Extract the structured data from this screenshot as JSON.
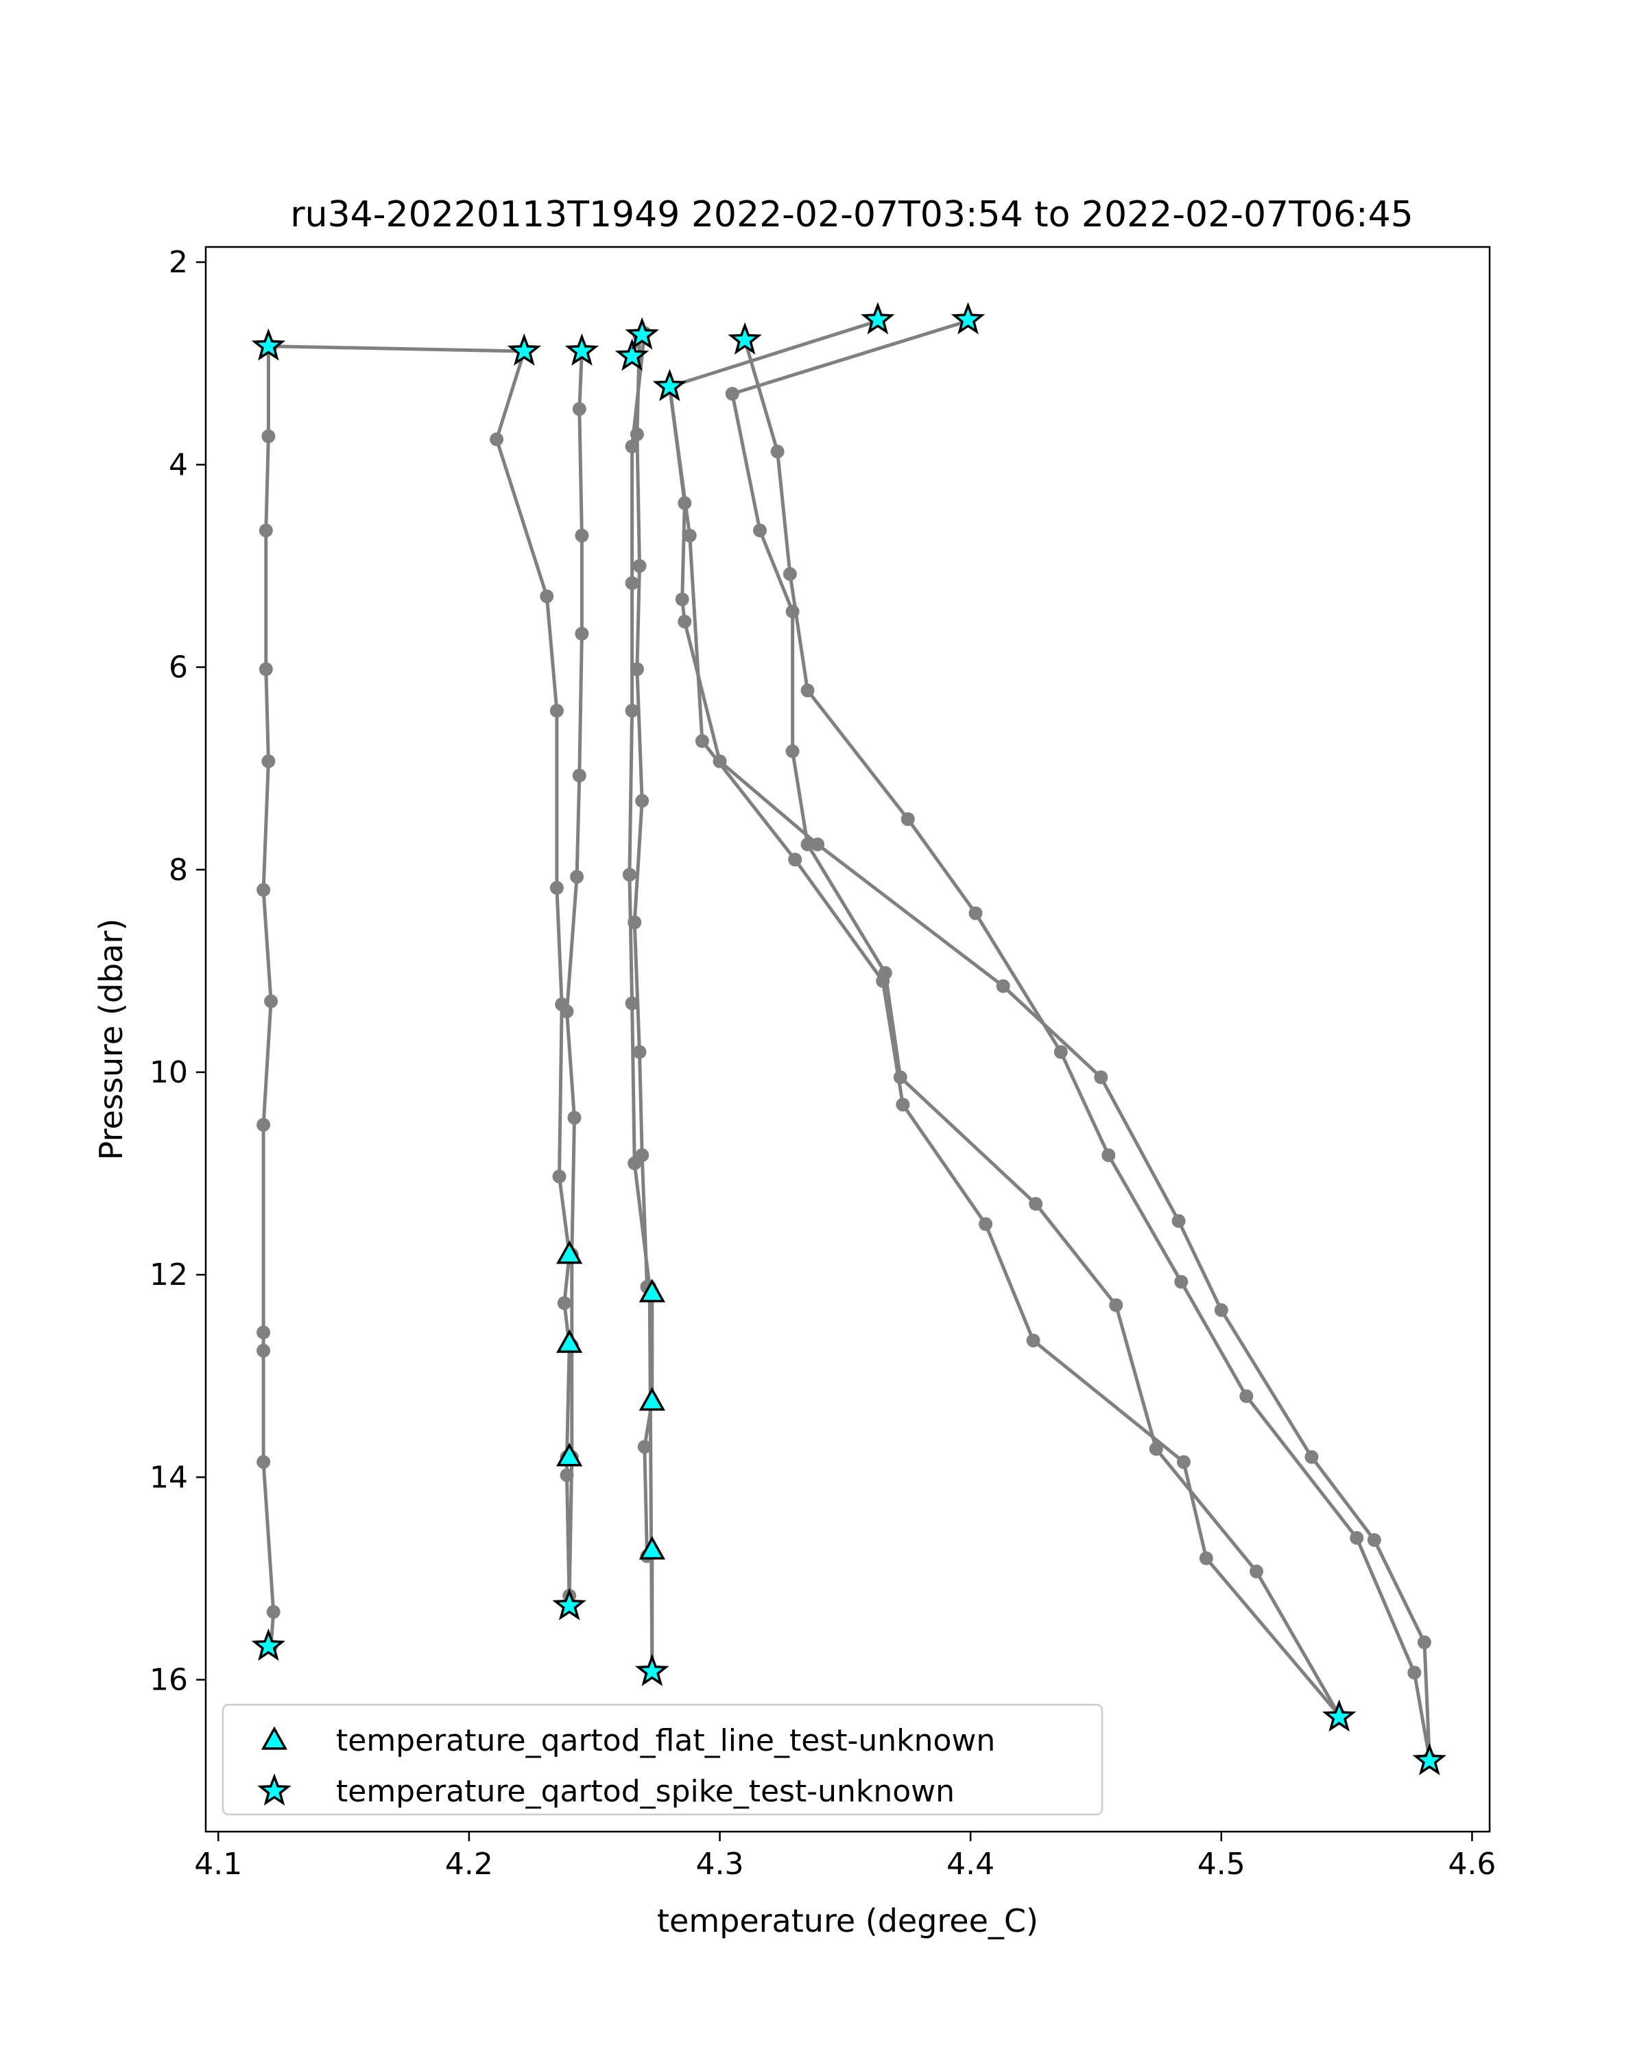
{
  "chart_data": {
    "type": "line",
    "title": "ru34-20220113T1949 2022-02-07T03:54 to 2022-02-07T06:45",
    "xlabel": "temperature (degree_C)",
    "ylabel": "Pressure (dbar)",
    "xlim": [
      4.095,
      4.607
    ],
    "ylim": [
      17.5,
      1.85
    ],
    "y_inverted": true,
    "xticks": [
      4.1,
      4.2,
      4.3,
      4.4,
      4.5,
      4.6
    ],
    "yticks": [
      2,
      4,
      6,
      8,
      10,
      12,
      14,
      16
    ],
    "grid": false,
    "legend_position": "lower-left",
    "colors": {
      "profile_line": "#808080",
      "marker_fill": "#00ffff",
      "marker_edge": "#000000"
    },
    "series": [
      {
        "points": [
          [
            4.12,
            2.83
          ],
          [
            4.12,
            3.72
          ],
          [
            4.119,
            4.65
          ],
          [
            4.119,
            6.02
          ],
          [
            4.12,
            6.93
          ],
          [
            4.118,
            8.2
          ],
          [
            4.121,
            9.3
          ],
          [
            4.118,
            10.52
          ],
          [
            4.118,
            12.57
          ],
          [
            4.118,
            12.75
          ],
          [
            4.118,
            13.85
          ],
          [
            4.122,
            15.33
          ],
          [
            4.121,
            15.67
          ]
        ]
      },
      {
        "points": [
          [
            4.121,
            2.83
          ],
          [
            4.222,
            2.88
          ],
          [
            4.211,
            3.75
          ],
          [
            4.231,
            5.3
          ],
          [
            4.235,
            6.43
          ],
          [
            4.235,
            8.18
          ],
          [
            4.237,
            9.33
          ],
          [
            4.236,
            11.03
          ],
          [
            4.24,
            11.8
          ],
          [
            4.238,
            12.28
          ],
          [
            4.24,
            12.7
          ],
          [
            4.239,
            13.8
          ],
          [
            4.239,
            13.98
          ],
          [
            4.24,
            15.27
          ]
        ]
      },
      {
        "points": [
          [
            4.245,
            2.88
          ],
          [
            4.244,
            3.45
          ],
          [
            4.245,
            4.7
          ],
          [
            4.245,
            5.67
          ],
          [
            4.244,
            7.07
          ],
          [
            4.243,
            8.07
          ],
          [
            4.239,
            9.4
          ],
          [
            4.242,
            10.45
          ],
          [
            4.241,
            11.8
          ],
          [
            4.241,
            12.7
          ],
          [
            4.241,
            13.8
          ],
          [
            4.24,
            15.17
          ],
          [
            4.24,
            15.27
          ]
        ]
      },
      {
        "points": [
          [
            4.265,
            2.93
          ],
          [
            4.268,
            2.73
          ],
          [
            4.267,
            3.7
          ],
          [
            4.268,
            5.0
          ],
          [
            4.267,
            6.02
          ],
          [
            4.269,
            7.32
          ],
          [
            4.266,
            8.52
          ],
          [
            4.268,
            9.8
          ],
          [
            4.269,
            10.82
          ],
          [
            4.271,
            12.12
          ],
          [
            4.273,
            12.17
          ],
          [
            4.273,
            13.25
          ],
          [
            4.27,
            13.7
          ],
          [
            4.271,
            14.78
          ],
          [
            4.273,
            14.72
          ],
          [
            4.273,
            15.92
          ]
        ]
      },
      {
        "points": [
          [
            4.27,
            2.7
          ],
          [
            4.265,
            3.82
          ],
          [
            4.265,
            5.17
          ],
          [
            4.265,
            6.43
          ],
          [
            4.264,
            8.05
          ],
          [
            4.265,
            9.32
          ],
          [
            4.266,
            10.9
          ],
          [
            4.272,
            12.12
          ],
          [
            4.273,
            15.92
          ]
        ]
      },
      {
        "points": [
          [
            4.363,
            2.58
          ],
          [
            4.28,
            3.23
          ],
          [
            4.286,
            4.38
          ],
          [
            4.285,
            5.33
          ],
          [
            4.286,
            5.55
          ],
          [
            4.3,
            6.93
          ],
          [
            4.339,
            7.75
          ],
          [
            4.413,
            9.15
          ],
          [
            4.452,
            10.05
          ],
          [
            4.483,
            11.47
          ],
          [
            4.5,
            12.35
          ],
          [
            4.536,
            13.8
          ],
          [
            4.561,
            14.62
          ],
          [
            4.581,
            15.63
          ],
          [
            4.583,
            16.78
          ]
        ]
      },
      {
        "points": [
          [
            4.399,
            2.58
          ],
          [
            4.305,
            3.3
          ],
          [
            4.316,
            4.65
          ],
          [
            4.329,
            5.45
          ],
          [
            4.329,
            6.83
          ],
          [
            4.335,
            7.75
          ],
          [
            4.366,
            9.02
          ],
          [
            4.372,
            10.05
          ],
          [
            4.426,
            11.3
          ],
          [
            4.458,
            12.3
          ],
          [
            4.474,
            13.72
          ],
          [
            4.514,
            14.93
          ],
          [
            4.547,
            16.35
          ]
        ]
      },
      {
        "points": [
          [
            4.31,
            2.77
          ],
          [
            4.323,
            3.87
          ],
          [
            4.328,
            5.08
          ],
          [
            4.335,
            6.23
          ],
          [
            4.375,
            7.5
          ],
          [
            4.402,
            8.43
          ],
          [
            4.436,
            9.8
          ],
          [
            4.455,
            10.82
          ],
          [
            4.484,
            12.07
          ],
          [
            4.51,
            13.2
          ],
          [
            4.554,
            14.6
          ],
          [
            4.577,
            15.93
          ],
          [
            4.583,
            16.78
          ]
        ]
      },
      {
        "points": [
          [
            4.28,
            3.23
          ],
          [
            4.288,
            4.7
          ],
          [
            4.293,
            6.73
          ],
          [
            4.33,
            7.9
          ],
          [
            4.365,
            9.1
          ],
          [
            4.373,
            10.32
          ],
          [
            4.406,
            11.5
          ],
          [
            4.425,
            12.65
          ],
          [
            4.485,
            13.85
          ],
          [
            4.494,
            14.8
          ],
          [
            4.547,
            16.35
          ]
        ]
      }
    ],
    "markers": [
      {
        "name": "temperature_qartod_flat_line_test-unknown",
        "marker": "triangle",
        "points": [
          [
            4.24,
            11.8
          ],
          [
            4.273,
            12.18
          ],
          [
            4.24,
            12.68
          ],
          [
            4.273,
            13.25
          ],
          [
            4.24,
            13.8
          ],
          [
            4.273,
            14.72
          ]
        ]
      },
      {
        "name": "temperature_qartod_spike_test-unknown",
        "marker": "star",
        "points": [
          [
            4.12,
            2.83
          ],
          [
            4.222,
            2.88
          ],
          [
            4.245,
            2.88
          ],
          [
            4.265,
            2.93
          ],
          [
            4.269,
            2.72
          ],
          [
            4.28,
            3.23
          ],
          [
            4.31,
            2.77
          ],
          [
            4.363,
            2.57
          ],
          [
            4.399,
            2.57
          ],
          [
            4.12,
            15.67
          ],
          [
            4.24,
            15.27
          ],
          [
            4.273,
            15.92
          ],
          [
            4.547,
            16.37
          ],
          [
            4.583,
            16.8
          ]
        ]
      }
    ]
  }
}
